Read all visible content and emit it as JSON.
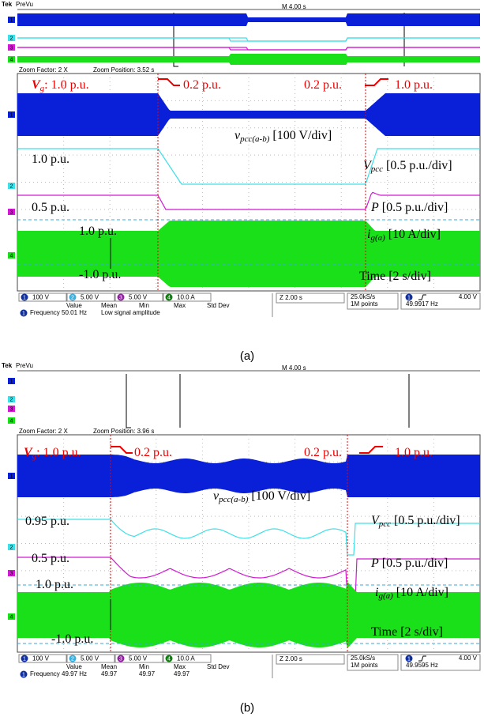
{
  "panels": [
    {
      "header": {
        "brand": "Tek",
        "mode": "PreVu",
        "timebase": "M 4.00 s"
      },
      "zoom": {
        "factor": "Zoom Factor: 2 X",
        "position": "Zoom Position: 3.52 s"
      },
      "channel_markers": [
        "1",
        "2",
        "3",
        "4"
      ],
      "annotations": [
        {
          "main": "V",
          "sub": "g",
          "rest": ": 1.0 p.u."
        },
        {
          "main": "0.2 p.u."
        },
        {
          "main": "0.2 p.u."
        },
        {
          "main": "1.0 p.u."
        },
        {
          "main": "v",
          "sub": "pcc(a-b)",
          "rest": " [100 V/div]"
        },
        {
          "main": "1.0 p.u."
        },
        {
          "main": "V",
          "sub": "pcc",
          "rest": " [0.5 p.u./div]"
        },
        {
          "main": "0.5 p.u."
        },
        {
          "main": "P",
          "rest": " [0.5 p.u./div]"
        },
        {
          "main": "1.0 p.u."
        },
        {
          "main": "i",
          "sub": "g(a)",
          "rest": " [10 A/div]"
        },
        {
          "main": "-1.0 p.u."
        },
        {
          "main": "Time [2 s/div]"
        }
      ],
      "status": {
        "channels": [
          {
            "num": "1",
            "scale": "100 V"
          },
          {
            "num": "2",
            "scale": "5.00 V"
          },
          {
            "num": "3",
            "scale": "5.00 V"
          },
          {
            "num": "4",
            "scale": "10.0 A"
          }
        ],
        "zoom_scale": "Z 2.00 s",
        "rate": "25.0kS/s",
        "points": "1M points",
        "trigger_ch": "1",
        "trigger_level": "4.00 V",
        "freq": "49.9917 Hz"
      },
      "measure": {
        "headers": [
          "Value",
          "Mean",
          "Min",
          "Max",
          "Std Dev"
        ],
        "ch": "1",
        "name": "Frequency",
        "cells": [
          "50.01 Hz",
          "Low signal amplitude"
        ]
      },
      "caption": "(a)"
    },
    {
      "header": {
        "brand": "Tek",
        "mode": "PreVu",
        "timebase": "M 4.00 s"
      },
      "zoom": {
        "factor": "Zoom Factor: 2 X",
        "position": "Zoom Position: 3.96 s"
      },
      "channel_markers": [
        "1",
        "2",
        "3",
        "4"
      ],
      "annotations": [
        {
          "main": "V",
          "sub": "g",
          "rest": ": 1.0 p.u."
        },
        {
          "main": "0.2 p.u."
        },
        {
          "main": "0.2 p.u."
        },
        {
          "main": "1.0 p.u."
        },
        {
          "main": "v",
          "sub": "pcc(a-b)",
          "rest": " [100 V/div]"
        },
        {
          "main": "0.95 p.u."
        },
        {
          "main": "V",
          "sub": "pcc",
          "rest": " [0.5 p.u./div]"
        },
        {
          "main": "0.5 p.u."
        },
        {
          "main": "P",
          "rest": " [0.5 p.u./div]"
        },
        {
          "main": "1.0 p.u."
        },
        {
          "main": "i",
          "sub": "g(a)",
          "rest": " [10 A/div]"
        },
        {
          "main": "-1.0 p.u."
        },
        {
          "main": "Time [2 s/div]"
        }
      ],
      "status": {
        "channels": [
          {
            "num": "1",
            "scale": "100 V"
          },
          {
            "num": "2",
            "scale": "5.00 V"
          },
          {
            "num": "3",
            "scale": "5.00 V"
          },
          {
            "num": "4",
            "scale": "10.0 A"
          }
        ],
        "zoom_scale": "Z 2.00 s",
        "rate": "25.0kS/s",
        "points": "1M points",
        "trigger_ch": "1",
        "trigger_level": "4.00 V",
        "freq": "49.9595 Hz"
      },
      "measure": {
        "headers": [
          "Value",
          "Mean",
          "Min",
          "Max",
          "Std Dev"
        ],
        "ch": "1",
        "name": "Frequency",
        "cells": [
          "49.97 Hz",
          "49.97",
          "49.97",
          "49.97"
        ]
      },
      "caption": "(b)"
    }
  ]
}
